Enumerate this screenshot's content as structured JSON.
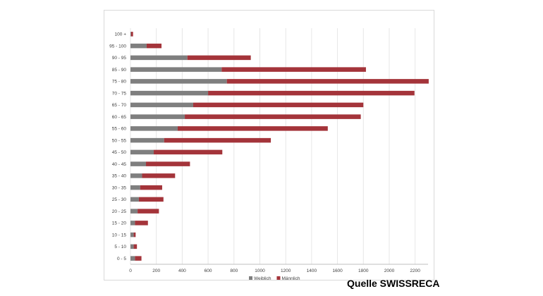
{
  "source_label": "Quelle SWISSRECA",
  "chart_data": {
    "type": "bar",
    "orientation": "horizontal",
    "stacked": true,
    "title": "",
    "xlabel": "",
    "ylabel": "",
    "xlim": [
      0,
      2300
    ],
    "xticks": [
      0,
      200,
      400,
      600,
      800,
      1000,
      1200,
      1400,
      1600,
      1800,
      2000,
      2200
    ],
    "grid": true,
    "legend_position": "bottom",
    "categories": [
      "100 +",
      "95 - 100",
      "90 - 95",
      "85 - 90",
      "75 - 80",
      "70 - 75",
      "65 - 70",
      "60 - 65",
      "55 - 60",
      "50 - 55",
      "45 - 50",
      "40 - 45",
      "35 - 40",
      "30 - 35",
      "25 - 30",
      "20 - 25",
      "15 - 20",
      "10 - 15",
      "5 - 10",
      "0 - 5"
    ],
    "series": [
      {
        "name": "Weiblich",
        "color": "#7f7f7f",
        "values": [
          5,
          125,
          440,
          705,
          745,
          600,
          485,
          420,
          365,
          260,
          180,
          120,
          90,
          75,
          65,
          55,
          35,
          25,
          25,
          35
        ]
      },
      {
        "name": "Männlich",
        "color": "#a4343a",
        "values": [
          15,
          115,
          490,
          1115,
          1560,
          1595,
          1315,
          1360,
          1160,
          825,
          530,
          340,
          255,
          170,
          190,
          165,
          100,
          15,
          25,
          50
        ]
      }
    ]
  }
}
